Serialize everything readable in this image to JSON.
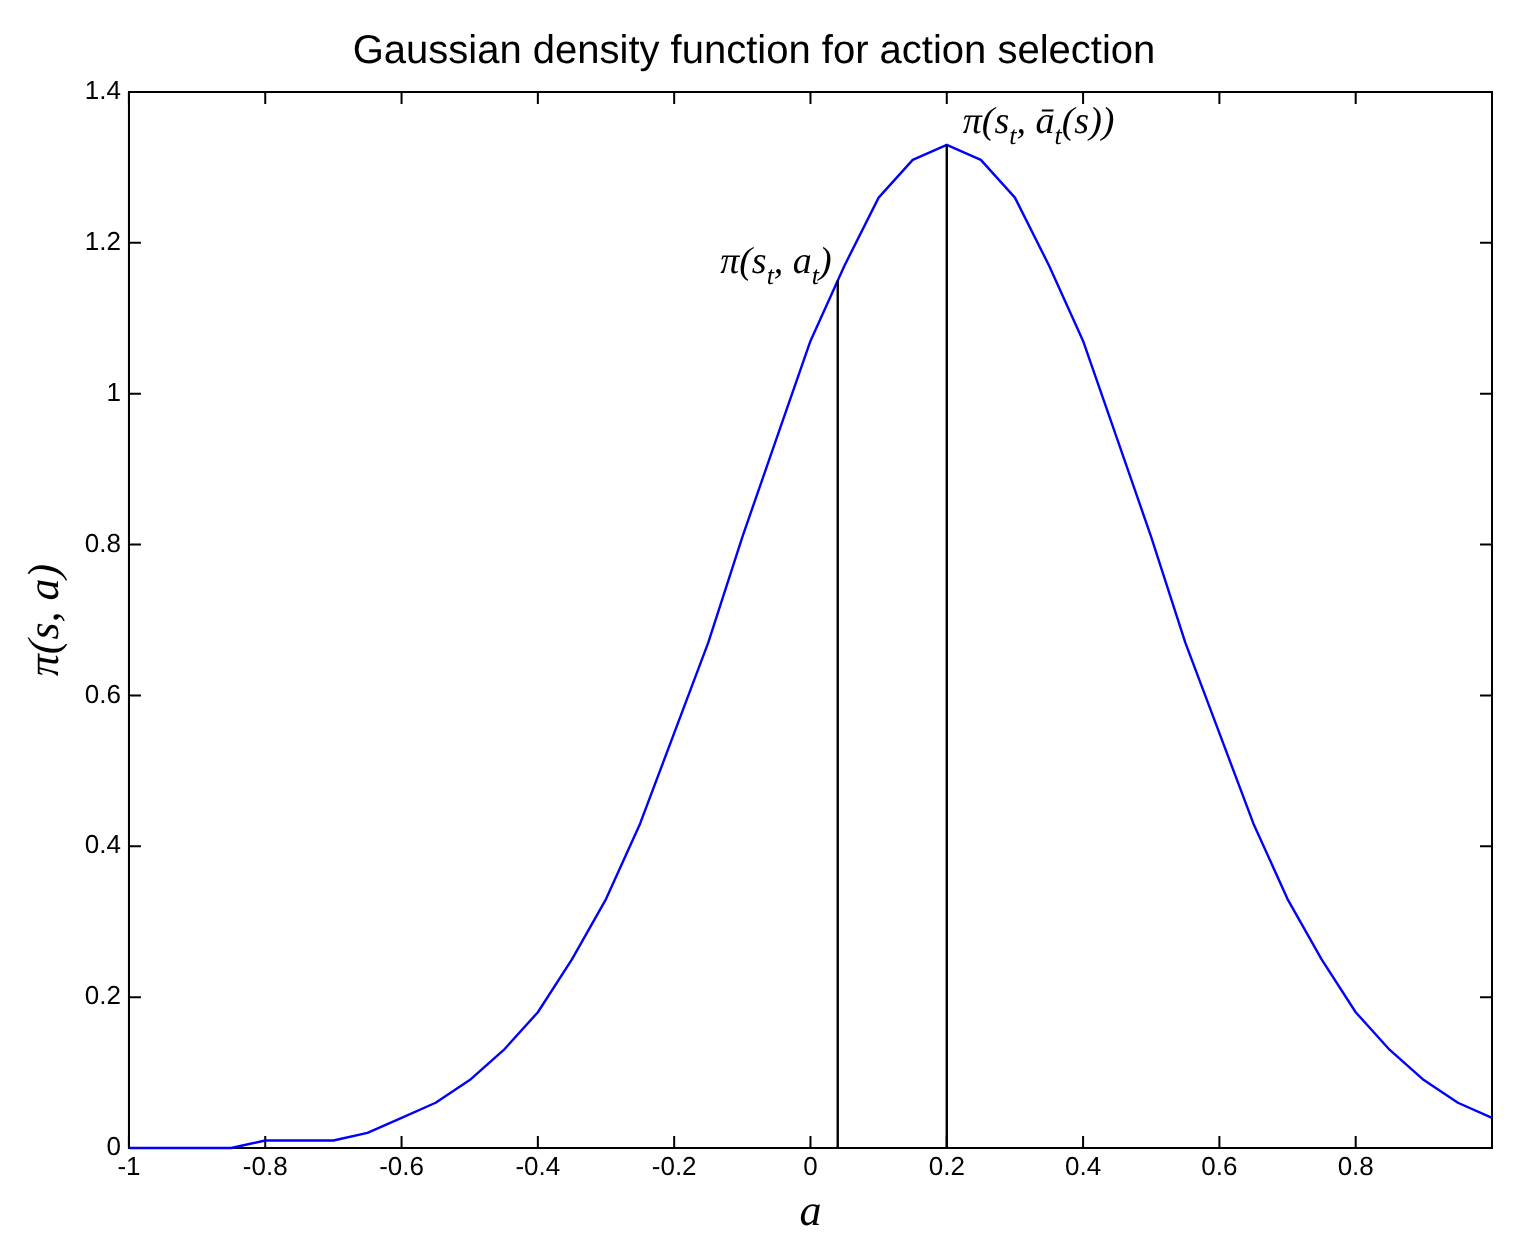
{
  "chart_data": {
    "type": "line",
    "title": "Gaussian density function for action selection",
    "xlabel": "a",
    "ylabel": "π(s, a)",
    "x": [
      -1,
      -0.95,
      -0.9,
      -0.85,
      -0.8,
      -0.75,
      -0.7,
      -0.65,
      -0.6,
      -0.55,
      -0.5,
      -0.45,
      -0.4,
      -0.35,
      -0.3,
      -0.25,
      -0.2,
      -0.15,
      -0.1,
      -0.05,
      0,
      0.05,
      0.1,
      0.15,
      0.2,
      0.25,
      0.3,
      0.35,
      0.4,
      0.45,
      0.5,
      0.55,
      0.6,
      0.65,
      0.7,
      0.75,
      0.8,
      0.85,
      0.9,
      0.95,
      1
    ],
    "series": [
      {
        "color": "#0000ff",
        "values": [
          0,
          0,
          0,
          0,
          0.01,
          0.01,
          0.01,
          0.02,
          0.04,
          0.06,
          0.09,
          0.13,
          0.18,
          0.25,
          0.33,
          0.43,
          0.55,
          0.67,
          0.81,
          0.94,
          1.07,
          1.17,
          1.26,
          1.31,
          1.33,
          1.31,
          1.26,
          1.17,
          1.07,
          0.94,
          0.81,
          0.67,
          0.55,
          0.43,
          0.33,
          0.25,
          0.18,
          0.13,
          0.09,
          0.06,
          0.04
        ]
      }
    ],
    "xlim": [
      -1,
      1
    ],
    "xticks": [
      -1,
      -0.8,
      -0.6,
      -0.4,
      -0.2,
      0,
      0.2,
      0.4,
      0.6,
      0.8
    ],
    "ylim": [
      0,
      1.4
    ],
    "yticks": [
      0,
      0.2,
      0.4,
      0.6,
      0.8,
      1,
      1.2,
      1.4
    ],
    "ref_lines": [
      {
        "axis": "x",
        "value": 0.04,
        "label": "π(s$_{t}$, a$_{t}$)",
        "color": "#000000"
      },
      {
        "axis": "x",
        "value": 0.2,
        "label": "π(s$_{t}$, ā$_{t}$(s))",
        "color": "#000000"
      }
    ],
    "grid": false,
    "legend": false,
    "marker": "none",
    "line_style": "solid"
  }
}
